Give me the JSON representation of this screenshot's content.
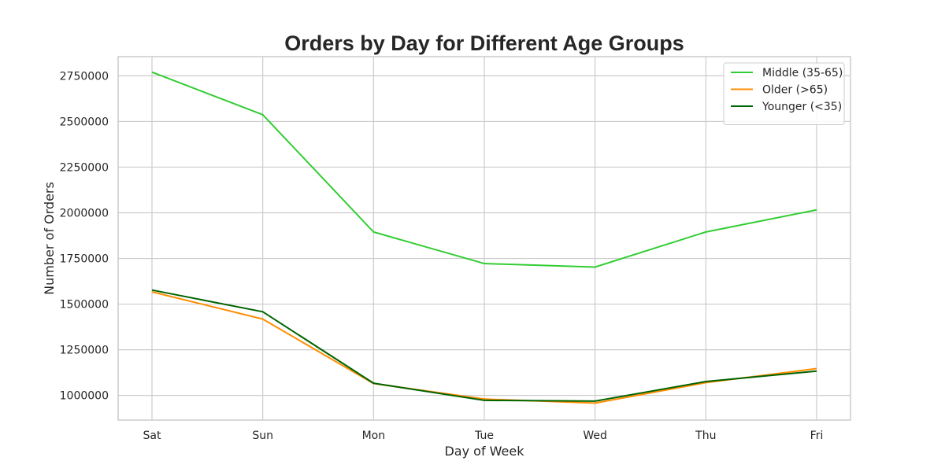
{
  "chart_data": {
    "type": "line",
    "title": "Orders by Day for Different Age Groups",
    "xlabel": "Day of Week",
    "ylabel": "Number of Orders",
    "categories": [
      "Sat",
      "Sun",
      "Mon",
      "Tue",
      "Wed",
      "Thu",
      "Fri"
    ],
    "yticks": [
      1000000,
      1250000,
      1500000,
      1750000,
      2000000,
      2250000,
      2500000,
      2750000
    ],
    "ylim": [
      865000,
      2855000
    ],
    "grid": true,
    "legend_position": "top-right",
    "series": [
      {
        "name": "Middle (35-65)",
        "color": "#32cd32",
        "values": [
          2770000,
          2537000,
          1895000,
          1722000,
          1703000,
          1895000,
          2016000
        ]
      },
      {
        "name": "Older (>65)",
        "color": "#ff8c00",
        "values": [
          1567000,
          1418000,
          1065000,
          980000,
          958000,
          1070000,
          1147000
        ]
      },
      {
        "name": "Younger (<35)",
        "color": "#006400",
        "values": [
          1577000,
          1458000,
          1067000,
          973000,
          969000,
          1076000,
          1133000
        ]
      }
    ]
  }
}
